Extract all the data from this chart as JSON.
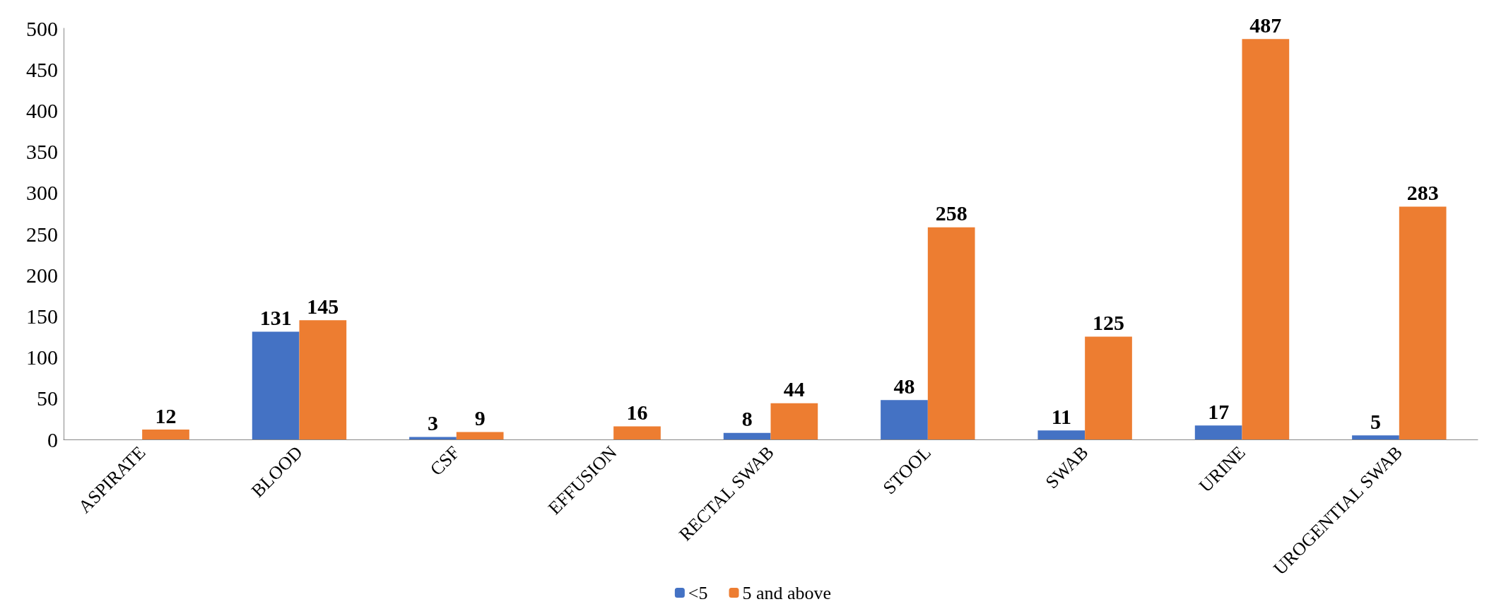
{
  "chart_data": {
    "type": "bar",
    "categories": [
      "ASPIRATE",
      "BLOOD",
      "CSF",
      "EFFUSION",
      "RECTAL SWAB",
      "STOOL",
      "SWAB",
      "URINE",
      "UROGENTIAL SWAB"
    ],
    "series": [
      {
        "name": "<5",
        "color": "#4472c4",
        "values": [
          null,
          131,
          3,
          null,
          8,
          48,
          11,
          17,
          5
        ]
      },
      {
        "name": "5 and above",
        "color": "#ed7d31",
        "values": [
          12,
          145,
          9,
          16,
          44,
          258,
          125,
          487,
          283
        ]
      }
    ],
    "ylim": [
      0,
      500
    ],
    "yticks": [
      0,
      50,
      100,
      150,
      200,
      250,
      300,
      350,
      400,
      450,
      500
    ],
    "data_labels": true,
    "grid": false,
    "legend": "bottom"
  }
}
